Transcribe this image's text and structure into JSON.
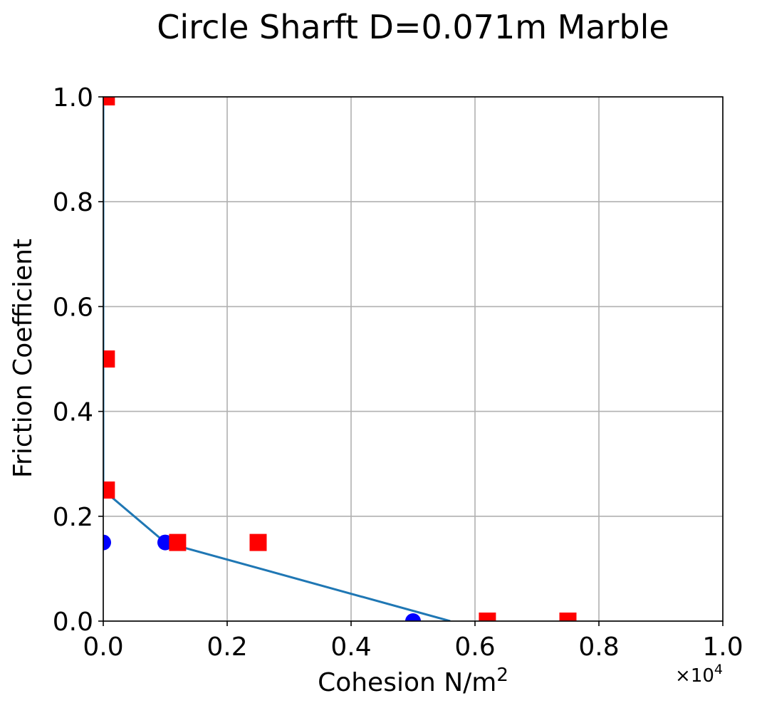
{
  "chart_data": {
    "type": "scatter",
    "title": "Circle Sharft D=0.071m Marble",
    "xlabel": "Cohesion N/m",
    "xlabel_superscript": "2",
    "ylabel": "Friction Coefficient",
    "x_offset_text": "×10",
    "x_offset_exponent": "4",
    "xlim": [
      0,
      10000
    ],
    "ylim": [
      0,
      1.0
    ],
    "x_ticks": [
      0,
      2000,
      4000,
      6000,
      8000,
      10000
    ],
    "x_tick_labels": [
      "0.0",
      "0.2",
      "0.4",
      "0.6",
      "0.8",
      "1.0"
    ],
    "y_ticks": [
      0,
      0.2,
      0.4,
      0.6,
      0.8,
      1.0
    ],
    "y_tick_labels": [
      "0.0",
      "0.2",
      "0.4",
      "0.6",
      "0.8",
      "1.0"
    ],
    "grid": true,
    "series": [
      {
        "marker": "circle",
        "color": "#0000ff",
        "points": [
          [
            0,
            0.15
          ],
          [
            1000,
            0.15
          ],
          [
            5000,
            0.0
          ]
        ]
      },
      {
        "marker": "square",
        "color": "#ff0000",
        "points": [
          [
            50,
            1.0
          ],
          [
            50,
            0.5
          ],
          [
            50,
            0.25
          ],
          [
            1200,
            0.15
          ],
          [
            2500,
            0.15
          ],
          [
            6200,
            0.0
          ],
          [
            7500,
            0.0
          ]
        ]
      },
      {
        "marker": "line",
        "color": "#1f77b4",
        "points": [
          [
            0,
            1.0
          ],
          [
            0,
            0.25
          ],
          [
            1000,
            0.15
          ],
          [
            5600,
            0.0
          ]
        ]
      }
    ]
  }
}
